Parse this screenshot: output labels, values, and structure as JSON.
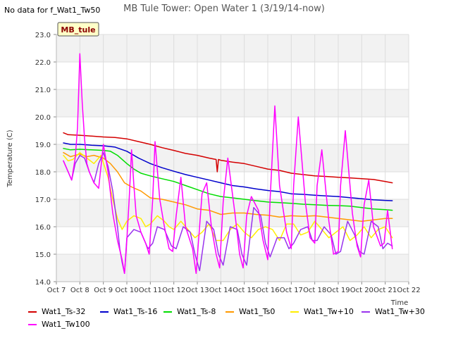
{
  "chart_data": {
    "type": "line",
    "title": "MB Tule Tower: Open Water 1 (3/19/14-now)",
    "nodata_note": "No data for f_Wat1_Tw50",
    "badge": "MB_tule",
    "xlabel": "Time",
    "ylabel": "Temperature (C)",
    "xlim": [
      7,
      22
    ],
    "ylim": [
      14.0,
      23.0
    ],
    "yticks": [
      14.0,
      15.0,
      16.0,
      17.0,
      18.0,
      19.0,
      20.0,
      21.0,
      22.0,
      23.0
    ],
    "ytick_labels": [
      "14.0",
      "15.0",
      "16.0",
      "17.0",
      "18.0",
      "19.0",
      "20.0",
      "21.0",
      "22.0",
      "23.0"
    ],
    "xticks": [
      7,
      8,
      9,
      10,
      11,
      12,
      13,
      14,
      15,
      16,
      17,
      18,
      19,
      20,
      21,
      22
    ],
    "xtick_labels": [
      "Oct 7",
      "Oct 8",
      "Oct 9",
      "Oct 10",
      "Oct 11",
      "Oct 12",
      "Oct 13",
      "Oct 14",
      "Oct 15",
      "Oct 16",
      "Oct 17",
      "Oct 18",
      "Oct 19",
      "Oct 20",
      "Oct 21",
      "Oct 22"
    ],
    "grid_bands": true,
    "legend_position": "bottom",
    "series": [
      {
        "name": "Wat1_Ts-32",
        "color": "#d40000",
        "width": 1.5,
        "x": [
          7.3,
          7.5,
          8.0,
          8.5,
          9.0,
          9.5,
          10.0,
          10.5,
          11.0,
          11.5,
          12.0,
          12.5,
          13.0,
          13.5,
          13.8,
          13.85,
          13.9,
          14.0,
          14.5,
          15.0,
          15.5,
          16.0,
          16.5,
          17.0,
          17.5,
          18.0,
          18.5,
          19.0,
          19.5,
          20.0,
          20.5,
          21.0,
          21.3
        ],
        "y": [
          19.42,
          19.35,
          19.33,
          19.3,
          19.27,
          19.25,
          19.2,
          19.1,
          19.0,
          18.88,
          18.78,
          18.67,
          18.6,
          18.5,
          18.45,
          18.0,
          18.45,
          18.42,
          18.35,
          18.3,
          18.2,
          18.1,
          18.05,
          17.95,
          17.9,
          17.85,
          17.83,
          17.8,
          17.78,
          17.75,
          17.72,
          17.65,
          17.6
        ]
      },
      {
        "name": "Wat1_Ts-16",
        "color": "#0000cc",
        "width": 1.5,
        "x": [
          7.3,
          7.6,
          8.0,
          8.5,
          9.0,
          9.5,
          10.0,
          10.5,
          11.0,
          11.5,
          12.0,
          12.5,
          13.0,
          13.5,
          14.0,
          14.5,
          15.0,
          15.5,
          16.0,
          16.5,
          17.0,
          17.5,
          18.0,
          18.5,
          19.0,
          19.5,
          20.0,
          20.5,
          21.0,
          21.3
        ],
        "y": [
          19.05,
          19.0,
          19.0,
          18.97,
          18.95,
          18.9,
          18.75,
          18.5,
          18.3,
          18.15,
          18.02,
          17.9,
          17.8,
          17.7,
          17.6,
          17.5,
          17.45,
          17.38,
          17.32,
          17.28,
          17.2,
          17.18,
          17.15,
          17.12,
          17.1,
          17.06,
          17.02,
          16.98,
          16.96,
          16.95
        ]
      },
      {
        "name": "Wat1_Ts-8",
        "color": "#00dd00",
        "width": 1.5,
        "x": [
          7.3,
          7.6,
          8.0,
          8.5,
          9.0,
          9.3,
          9.6,
          10.0,
          10.3,
          10.6,
          11.0,
          11.5,
          12.0,
          12.5,
          13.0,
          13.5,
          14.0,
          14.5,
          15.0,
          15.5,
          16.0,
          16.5,
          17.0,
          17.5,
          18.0,
          18.5,
          19.0,
          19.5,
          20.0,
          20.5,
          21.0,
          21.3
        ],
        "y": [
          18.85,
          18.8,
          18.82,
          18.8,
          18.78,
          18.75,
          18.6,
          18.3,
          18.1,
          17.95,
          17.85,
          17.75,
          17.65,
          17.5,
          17.35,
          17.2,
          17.1,
          17.05,
          17.0,
          16.95,
          16.9,
          16.88,
          16.85,
          16.82,
          16.8,
          16.78,
          16.77,
          16.75,
          16.7,
          16.65,
          16.62,
          16.6
        ]
      },
      {
        "name": "Wat1_Ts0",
        "color": "#ff9900",
        "width": 1.5,
        "x": [
          7.3,
          7.6,
          8.0,
          8.3,
          8.6,
          9.0,
          9.3,
          9.6,
          9.9,
          10.2,
          10.6,
          11.0,
          11.5,
          12.0,
          12.5,
          13.0,
          13.5,
          14.0,
          14.5,
          15.0,
          15.5,
          16.0,
          16.5,
          17.0,
          17.5,
          18.0,
          18.5,
          19.0,
          19.5,
          20.0,
          20.5,
          21.0,
          21.3
        ],
        "y": [
          18.7,
          18.55,
          18.65,
          18.55,
          18.6,
          18.5,
          18.3,
          18.0,
          17.6,
          17.45,
          17.3,
          17.05,
          17.0,
          16.9,
          16.8,
          16.65,
          16.6,
          16.45,
          16.5,
          16.5,
          16.45,
          16.42,
          16.35,
          16.4,
          16.38,
          16.4,
          16.35,
          16.3,
          16.25,
          16.2,
          16.25,
          16.3,
          16.3
        ]
      },
      {
        "name": "Wat1_Tw+10",
        "color": "#ffee00",
        "width": 1.5,
        "x": [
          7.3,
          7.5,
          7.7,
          8.0,
          8.3,
          8.6,
          8.9,
          9.2,
          9.4,
          9.6,
          9.8,
          10.0,
          10.3,
          10.6,
          10.8,
          11.0,
          11.3,
          11.6,
          11.8,
          12.0,
          12.3,
          12.6,
          12.9,
          13.2,
          13.5,
          13.8,
          14.1,
          14.4,
          14.7,
          15.0,
          15.3,
          15.6,
          15.9,
          16.2,
          16.5,
          16.8,
          17.1,
          17.4,
          17.7,
          18.0,
          18.3,
          18.6,
          18.9,
          19.2,
          19.5,
          19.8,
          20.1,
          20.4,
          20.7,
          21.0,
          21.3
        ],
        "y": [
          18.6,
          18.4,
          18.45,
          18.7,
          18.5,
          18.3,
          18.6,
          17.8,
          17.0,
          16.3,
          15.9,
          16.2,
          16.4,
          16.3,
          16.0,
          16.1,
          16.4,
          16.2,
          16.0,
          15.9,
          16.2,
          15.9,
          15.6,
          15.8,
          16.1,
          15.5,
          15.5,
          15.9,
          16.1,
          15.8,
          15.6,
          15.9,
          16.0,
          15.9,
          15.5,
          16.1,
          16.1,
          15.7,
          15.8,
          16.2,
          15.9,
          15.6,
          15.8,
          16.0,
          15.5,
          15.7,
          16.0,
          15.6,
          15.9,
          16.0,
          15.6
        ]
      },
      {
        "name": "Wat1_Tw+30",
        "color": "#9933ee",
        "width": 1.5,
        "x": [
          7.3,
          7.5,
          7.65,
          7.8,
          8.0,
          8.2,
          8.4,
          8.6,
          8.8,
          9.0,
          9.2,
          9.4,
          9.6,
          9.7,
          9.8,
          9.9,
          10.0,
          10.3,
          10.6,
          10.9,
          11.1,
          11.3,
          11.6,
          11.9,
          12.1,
          12.4,
          12.7,
          12.9,
          13.1,
          13.4,
          13.7,
          13.9,
          14.1,
          14.4,
          14.7,
          14.9,
          15.1,
          15.4,
          15.7,
          15.9,
          16.1,
          16.4,
          16.7,
          16.9,
          17.1,
          17.4,
          17.7,
          17.9,
          18.1,
          18.4,
          18.7,
          18.9,
          19.1,
          19.4,
          19.7,
          19.9,
          20.1,
          20.4,
          20.7,
          20.9,
          21.1,
          21.3
        ],
        "y": [
          18.4,
          18.0,
          17.7,
          18.3,
          18.6,
          18.5,
          18.0,
          17.6,
          18.3,
          18.7,
          18.2,
          17.3,
          16.0,
          15.2,
          14.7,
          14.3,
          15.6,
          15.9,
          15.8,
          15.2,
          15.4,
          16.0,
          15.9,
          15.3,
          15.2,
          16.0,
          15.8,
          15.0,
          14.4,
          16.2,
          15.9,
          15.0,
          14.6,
          16.0,
          15.9,
          15.0,
          14.6,
          16.7,
          16.4,
          15.4,
          14.9,
          15.6,
          15.6,
          15.2,
          15.4,
          15.9,
          16.0,
          15.5,
          15.5,
          16.0,
          15.7,
          15.0,
          15.1,
          16.2,
          15.7,
          15.1,
          15.0,
          16.2,
          16.0,
          15.2,
          15.4,
          15.3
        ]
      },
      {
        "name": "Wat1_Tw100",
        "color": "#ff00ff",
        "width": 1.5,
        "x": [
          7.3,
          7.5,
          7.65,
          7.8,
          7.9,
          8.0,
          8.1,
          8.2,
          8.3,
          8.4,
          8.6,
          8.8,
          9.0,
          9.2,
          9.4,
          9.6,
          9.8,
          9.9,
          10.0,
          10.1,
          10.2,
          10.3,
          10.4,
          10.6,
          10.8,
          10.95,
          11.1,
          11.2,
          11.4,
          11.6,
          11.8,
          11.95,
          12.1,
          12.3,
          12.5,
          12.8,
          12.95,
          13.2,
          13.4,
          13.6,
          13.8,
          13.95,
          14.1,
          14.3,
          14.6,
          14.8,
          14.95,
          15.1,
          15.3,
          15.6,
          15.8,
          16.0,
          16.1,
          16.3,
          16.5,
          16.8,
          17.0,
          17.1,
          17.3,
          17.6,
          17.8,
          18.0,
          18.1,
          18.3,
          18.6,
          18.8,
          19.0,
          19.1,
          19.3,
          19.6,
          19.8,
          19.95,
          20.1,
          20.3,
          20.5,
          20.8,
          20.95,
          21.1,
          21.3
        ],
        "y": [
          18.4,
          18.0,
          17.7,
          18.5,
          19.6,
          22.3,
          20.5,
          19.2,
          18.3,
          18.0,
          17.6,
          17.4,
          19.0,
          18.0,
          16.5,
          15.5,
          14.8,
          14.3,
          15.5,
          17.0,
          18.8,
          17.5,
          16.4,
          15.8,
          15.4,
          15.0,
          17.0,
          19.1,
          17.0,
          16.0,
          15.2,
          15.1,
          16.4,
          17.8,
          16.0,
          15.2,
          14.3,
          17.2,
          17.6,
          16.0,
          15.0,
          14.5,
          16.9,
          18.5,
          16.5,
          15.0,
          14.5,
          16.4,
          17.1,
          16.6,
          15.5,
          14.8,
          17.0,
          20.4,
          17.5,
          15.8,
          15.2,
          17.5,
          20.0,
          16.9,
          15.6,
          15.4,
          17.5,
          18.8,
          16.2,
          15.0,
          15.1,
          17.5,
          19.5,
          16.5,
          15.3,
          14.9,
          16.8,
          17.7,
          16.0,
          15.3,
          15.4,
          16.6,
          15.2
        ]
      }
    ],
    "legend_order": [
      "Wat1_Ts-32",
      "Wat1_Ts-16",
      "Wat1_Ts-8",
      "Wat1_Ts0",
      "Wat1_Tw+10",
      "Wat1_Tw+30",
      "Wat1_Tw100"
    ]
  }
}
